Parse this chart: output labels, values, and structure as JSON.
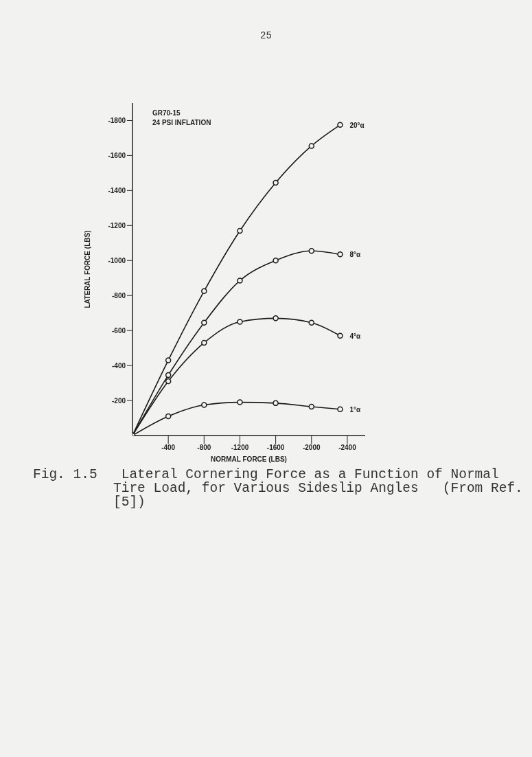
{
  "chart_data": {
    "type": "line",
    "title": "GR70-15",
    "subtitle": "24 PSI INFLATION",
    "xlabel": "NORMAL FORCE (LBS)",
    "ylabel": "LATERAL FORCE (LBS)",
    "x": [
      0,
      -400,
      -800,
      -1200,
      -1600,
      -2000,
      -2320
    ],
    "series": [
      {
        "name": "20°α",
        "color": "#1a1a1a",
        "values": [
          0,
          -430,
          -825,
          -1170,
          -1445,
          -1655,
          -1775
        ]
      },
      {
        "name": "8°α",
        "color": "#1a1a1a",
        "values": [
          0,
          -345,
          -645,
          -885,
          -1000,
          -1055,
          -1035
        ]
      },
      {
        "name": "4°α",
        "color": "#1a1a1a",
        "values": [
          0,
          -310,
          -530,
          -650,
          -670,
          -645,
          -570
        ]
      },
      {
        "name": "1°α",
        "color": "#1a1a1a",
        "values": [
          0,
          -110,
          -175,
          -190,
          -185,
          -165,
          -150
        ]
      }
    ],
    "xlim": [
      0,
      -2600
    ],
    "xticks": [
      -400,
      -800,
      -1200,
      -1600,
      -2000,
      -2400
    ],
    "ylim": [
      0,
      -1900
    ],
    "yticks": [
      -200,
      -400,
      -600,
      -800,
      -1000,
      -1200,
      -1400,
      -1600,
      -1800
    ],
    "grid": false,
    "legend": false,
    "marker": "circle",
    "line_style": "solid",
    "annotations": [
      "25",
      "Fig. 1.5   Lateral Cornering Force as a Function of Normal Tire Load, for Various Sideslip Angles   (From Ref. [5])"
    ]
  }
}
